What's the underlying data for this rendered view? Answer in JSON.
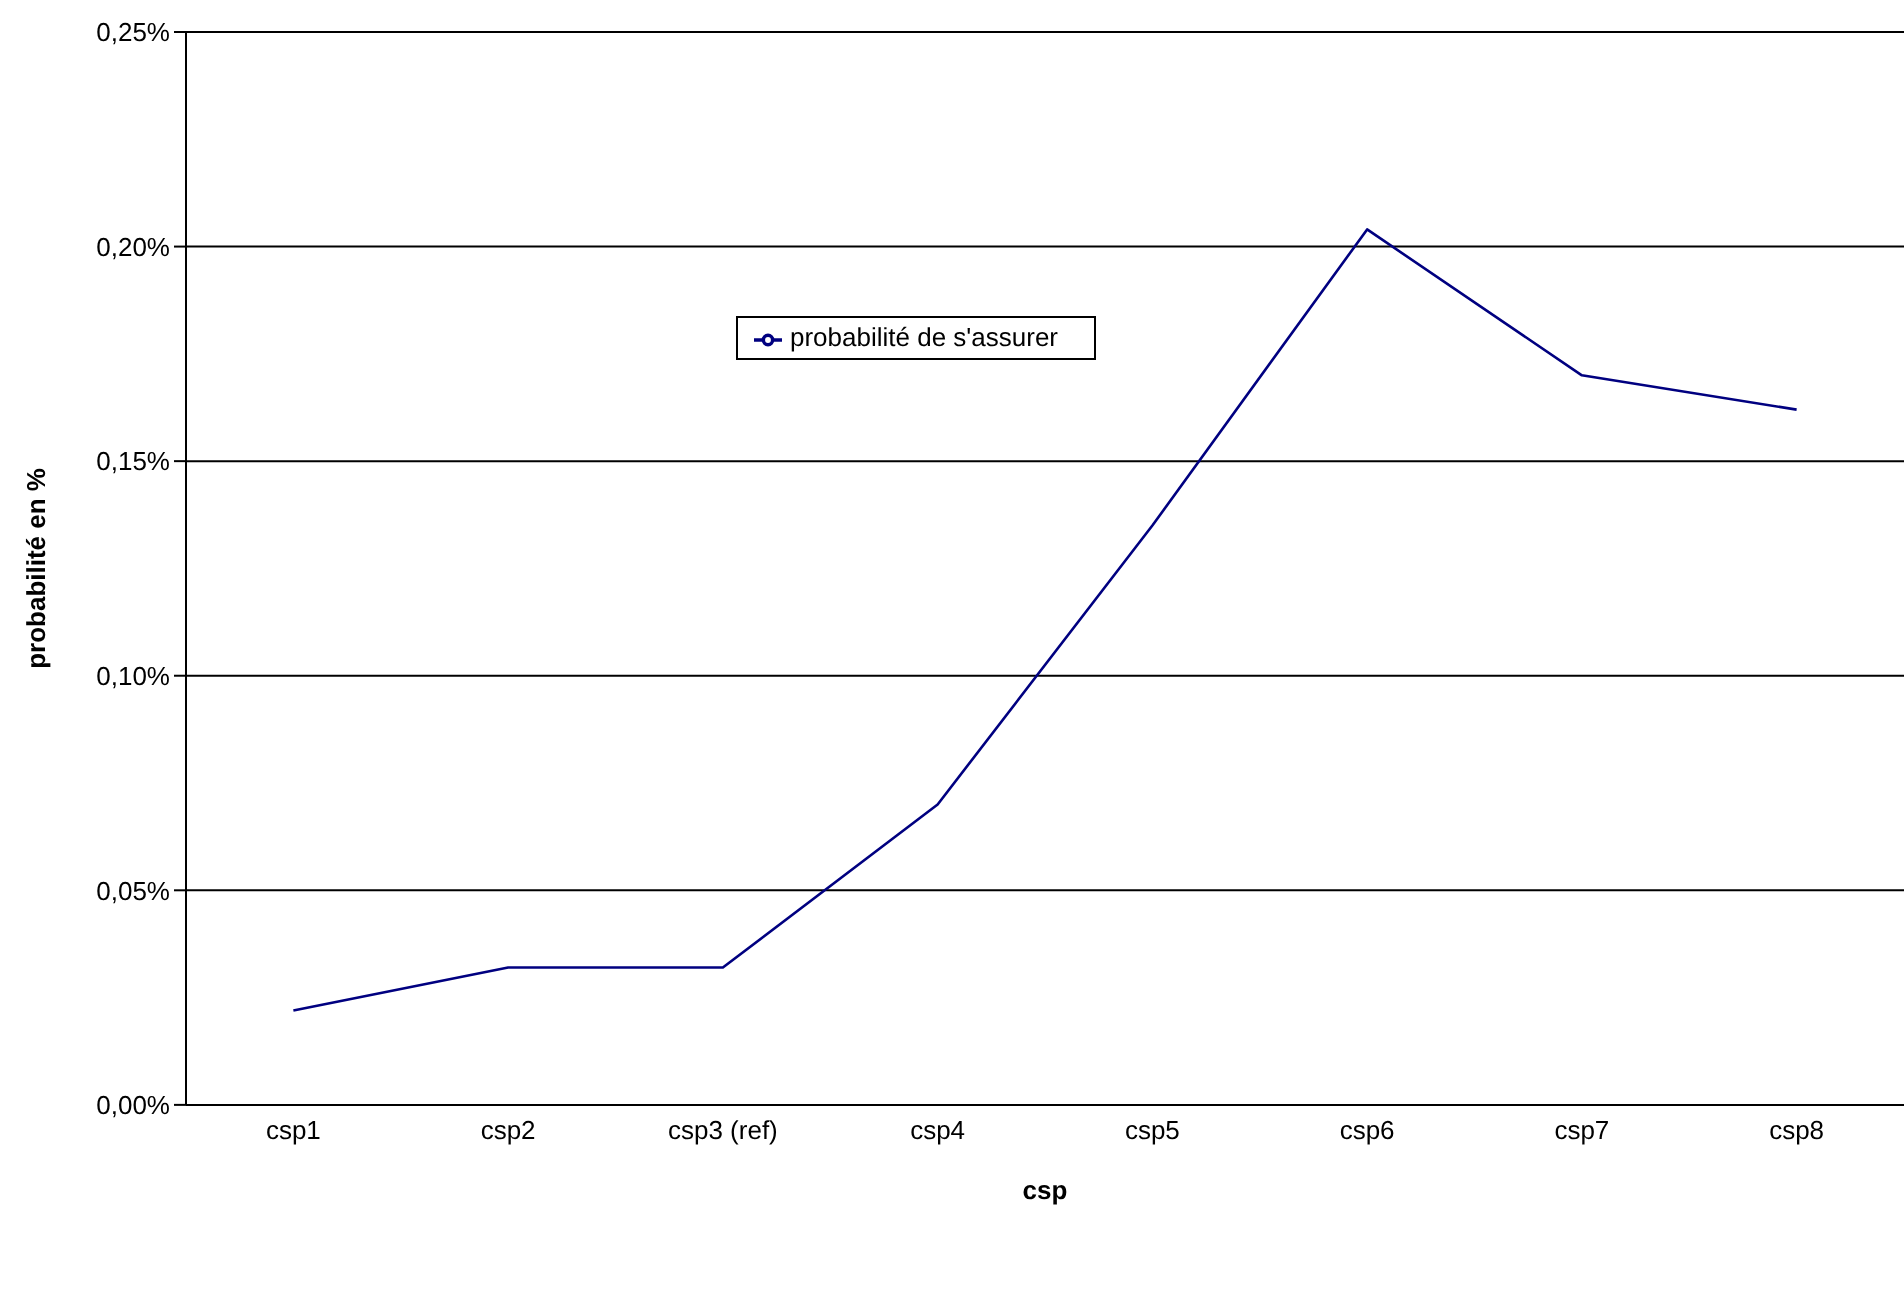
{
  "chart_data": {
    "type": "line",
    "xlabel": "csp",
    "ylabel": "probabilité en %",
    "categories": [
      "csp1",
      "csp2",
      "csp3 (ref)",
      "csp4",
      "csp5",
      "csp6",
      "csp7",
      "csp8"
    ],
    "series": [
      {
        "name": "probabilité de s'assurer",
        "color": "#000080",
        "values": [
          0.022,
          0.032,
          0.032,
          0.07,
          0.135,
          0.204,
          0.17,
          0.162
        ]
      }
    ],
    "ylim": [
      0,
      0.25
    ],
    "yticks": [
      {
        "value": 0,
        "label": "0,00%"
      },
      {
        "value": 0.05,
        "label": "0,05%"
      },
      {
        "value": 0.1,
        "label": "0,10%"
      },
      {
        "value": 0.15,
        "label": "0,15%"
      },
      {
        "value": 0.2,
        "label": "0,20%"
      },
      {
        "value": 0.25,
        "label": "0,25%"
      }
    ],
    "grid": "y",
    "legend": "top",
    "marker": "none",
    "line_style": "solid"
  }
}
